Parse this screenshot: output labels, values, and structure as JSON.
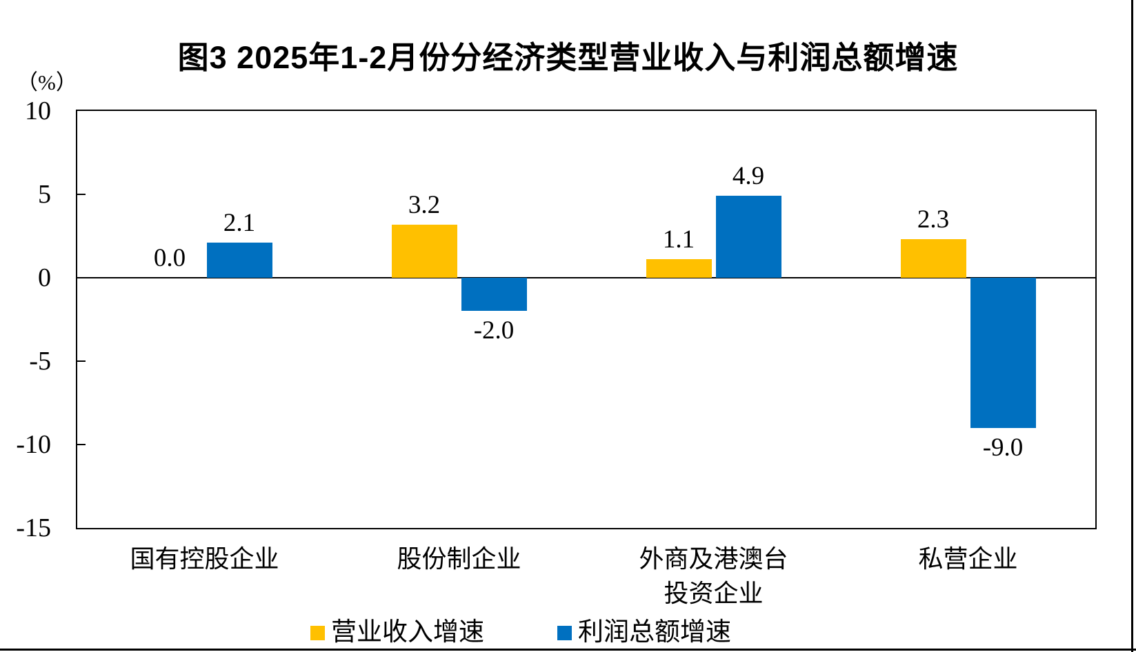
{
  "chart_data": {
    "type": "bar",
    "title": "图3 2025年1-2月份分经济类型营业收入与利润总额增速",
    "unit_label": "（%）",
    "categories": [
      [
        "国有控股企业"
      ],
      [
        "股份制企业"
      ],
      [
        "外商及港澳台",
        "投资企业"
      ],
      [
        "私营企业"
      ]
    ],
    "series": [
      {
        "name": "营业收入增速",
        "color": "#FFC000",
        "values": [
          0.0,
          3.2,
          1.1,
          2.3
        ],
        "data_labels": [
          "0.0",
          "3.2",
          "1.1",
          "2.3"
        ]
      },
      {
        "name": "利润总额增速",
        "color": "#0070C0",
        "values": [
          2.1,
          -2.0,
          4.9,
          -9.0
        ],
        "data_labels": [
          "2.1",
          "-2.0",
          "4.9",
          "-9.0"
        ]
      }
    ],
    "y_axis": {
      "ticks": [
        10,
        5,
        0,
        -5,
        -10,
        -15
      ],
      "ylim": [
        -15,
        10
      ],
      "grid": false
    },
    "legend": {
      "position": "bottom",
      "entries": [
        "营业收入增速",
        "利润总额增速"
      ]
    }
  },
  "colors": {
    "revenue_series": "#FFC000",
    "profit_series": "#0070C0",
    "axis": "#000000",
    "background": "#FFFFFF"
  }
}
